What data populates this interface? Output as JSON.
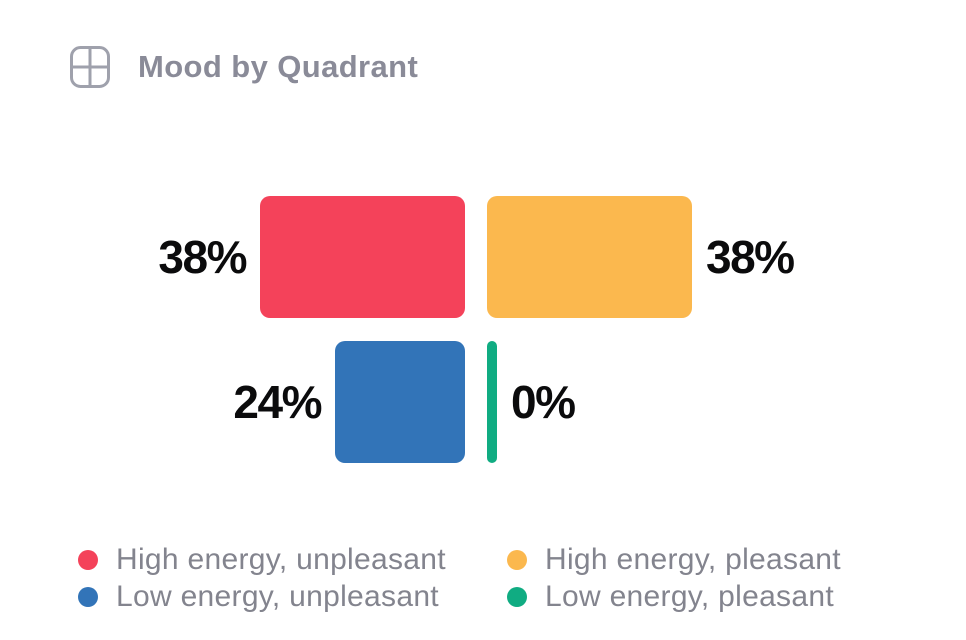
{
  "header": {
    "icon": "quadrant-grid-icon",
    "title": "Mood by Quadrant"
  },
  "chart_data": {
    "type": "bar",
    "title": "Mood by Quadrant",
    "orientation": "horizontal-diverging-quadrant",
    "unit": "percent",
    "max_value": 38,
    "grid": false,
    "legend_position": "bottom",
    "quadrants": [
      {
        "id": "high-energy-unpleasant",
        "legend_label": "High energy, unpleasant",
        "value": 38,
        "value_label": "38%",
        "color": "#F4425A",
        "row": "top",
        "side": "left"
      },
      {
        "id": "high-energy-pleasant",
        "legend_label": "High energy, pleasant",
        "value": 38,
        "value_label": "38%",
        "color": "#FBB84E",
        "row": "top",
        "side": "right"
      },
      {
        "id": "low-energy-unpleasant",
        "legend_label": "Low energy, unpleasant",
        "value": 24,
        "value_label": "24%",
        "color": "#3274B8",
        "row": "bottom",
        "side": "left"
      },
      {
        "id": "low-energy-pleasant",
        "legend_label": "Low energy, pleasant",
        "value": 0,
        "value_label": "0%",
        "color": "#10AC82",
        "row": "bottom",
        "side": "right"
      }
    ]
  },
  "colors": {
    "background": "#FFFFFF",
    "title_text": "#8A8B98",
    "legend_text": "#83848E",
    "value_text": "#0B0B0C",
    "icon_stroke": "#9FA1AC"
  }
}
